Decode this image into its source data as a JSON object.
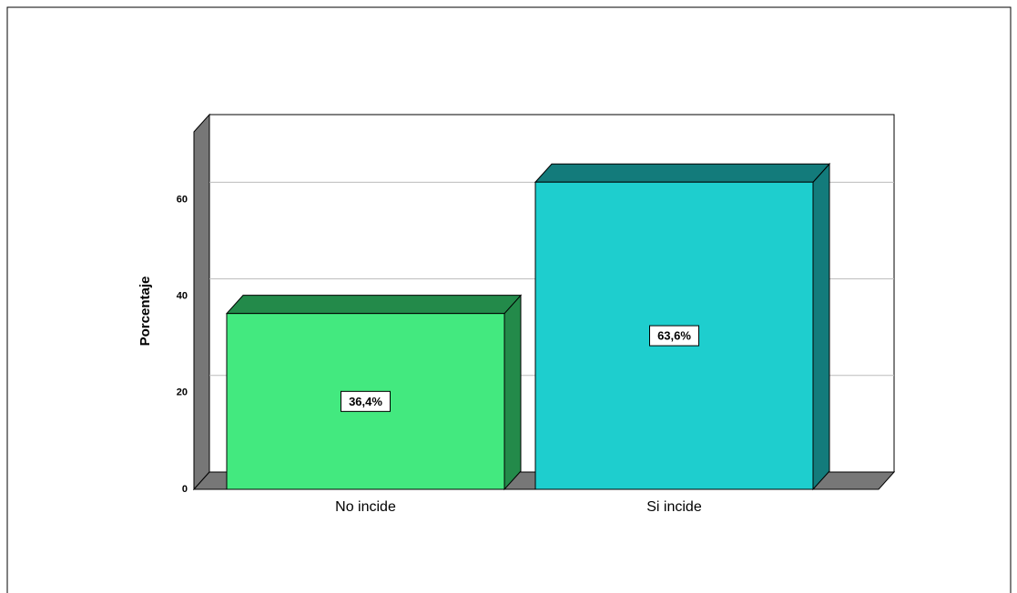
{
  "chart_data": {
    "type": "bar",
    "categories": [
      "No incide",
      "Si incide"
    ],
    "values": [
      36.4,
      63.6
    ],
    "value_labels": [
      "36,4%",
      "63,6%"
    ],
    "colors": [
      "#43e97f",
      "#1ecece"
    ],
    "side_colors": [
      "#238a4a",
      "#137b7b"
    ],
    "ylabel": "Porcentaje",
    "ylim": [
      0,
      74
    ],
    "yticks": [
      0,
      20,
      40,
      60
    ],
    "grid": true
  }
}
